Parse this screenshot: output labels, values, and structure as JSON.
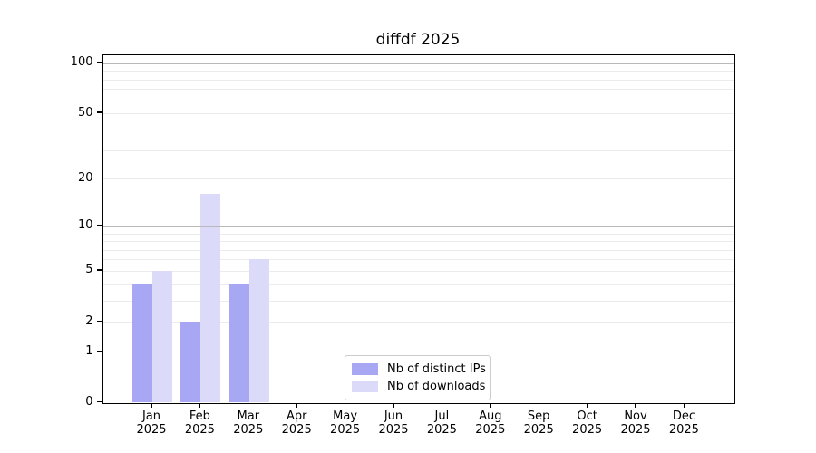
{
  "chart_data": {
    "type": "bar",
    "title": "diffdf 2025",
    "months": [
      "Jan",
      "Feb",
      "Mar",
      "Apr",
      "May",
      "Jun",
      "Jul",
      "Aug",
      "Sep",
      "Oct",
      "Nov",
      "Dec"
    ],
    "year_label": "2025",
    "series": [
      {
        "name": "Nb of distinct IPs",
        "color": "#a7a7f3",
        "values": [
          4,
          2,
          4,
          0,
          0,
          0,
          0,
          0,
          0,
          0,
          0,
          0
        ]
      },
      {
        "name": "Nb of downloads",
        "color": "#dbdbf9",
        "values": [
          5,
          16,
          6,
          0,
          0,
          0,
          0,
          0,
          0,
          0,
          0,
          0
        ]
      }
    ],
    "y_axis": {
      "scale": "log10(1+y)",
      "tick_values": [
        0,
        1,
        2,
        5,
        10,
        20,
        50,
        100
      ],
      "major_grid_values": [
        1,
        10,
        100
      ],
      "minor_grid_values": [
        2,
        3,
        4,
        5,
        6,
        7,
        8,
        9,
        20,
        30,
        40,
        50,
        60,
        70,
        80,
        90
      ]
    },
    "legend": {
      "location": "lower center"
    },
    "colors": {
      "background": "#ffffff",
      "axis": "#000000",
      "major_grid": "#b9b9b9",
      "minor_grid": "#ececec",
      "text": "#000000"
    }
  }
}
